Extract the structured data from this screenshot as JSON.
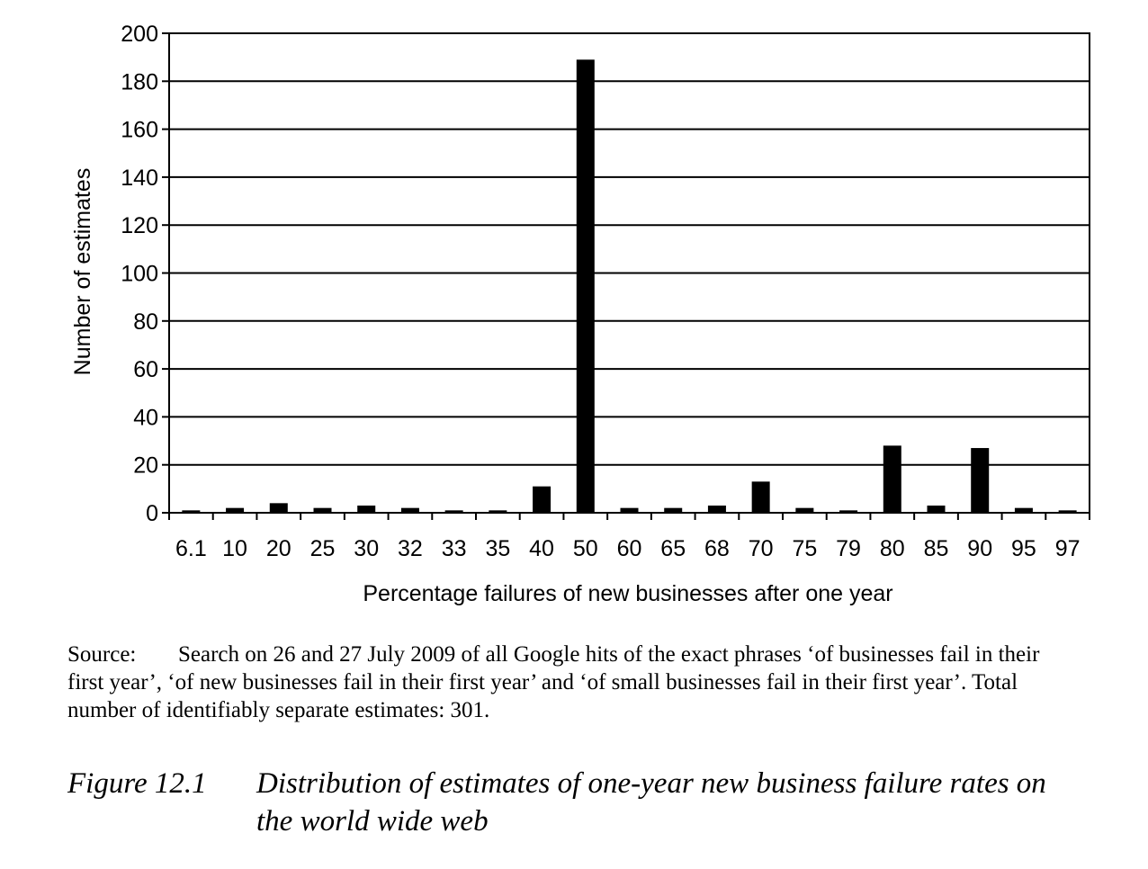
{
  "chart_data": {
    "type": "bar",
    "categories": [
      "6.1",
      "10",
      "20",
      "25",
      "30",
      "32",
      "33",
      "35",
      "40",
      "50",
      "60",
      "65",
      "68",
      "70",
      "75",
      "79",
      "80",
      "85",
      "90",
      "95",
      "97"
    ],
    "values": [
      1,
      2,
      4,
      2,
      3,
      2,
      1,
      1,
      11,
      189,
      2,
      2,
      3,
      13,
      2,
      1,
      28,
      3,
      27,
      2,
      1
    ],
    "yticks": [
      "0",
      "20",
      "40",
      "60",
      "80",
      "100",
      "120",
      "140",
      "160",
      "180",
      "200"
    ],
    "ylim": [
      0,
      200
    ],
    "xlabel": "Percentage failures of new businesses after one year",
    "ylabel": "Number of estimates",
    "grid": true,
    "bar_color": "#000000"
  },
  "source": {
    "label": "Source:",
    "text": "Search on 26 and 27 July 2009 of all Google hits of the exact phrases ‘of businesses fail in their first year’, ‘of new businesses fail in their first year’ and ‘of small businesses fail in their first year’. Total number of identifiably separate estimates: 301."
  },
  "caption": {
    "number": "Figure 12.1",
    "title": "Distribution of estimates of one-year new business failure rates on the world wide web"
  }
}
